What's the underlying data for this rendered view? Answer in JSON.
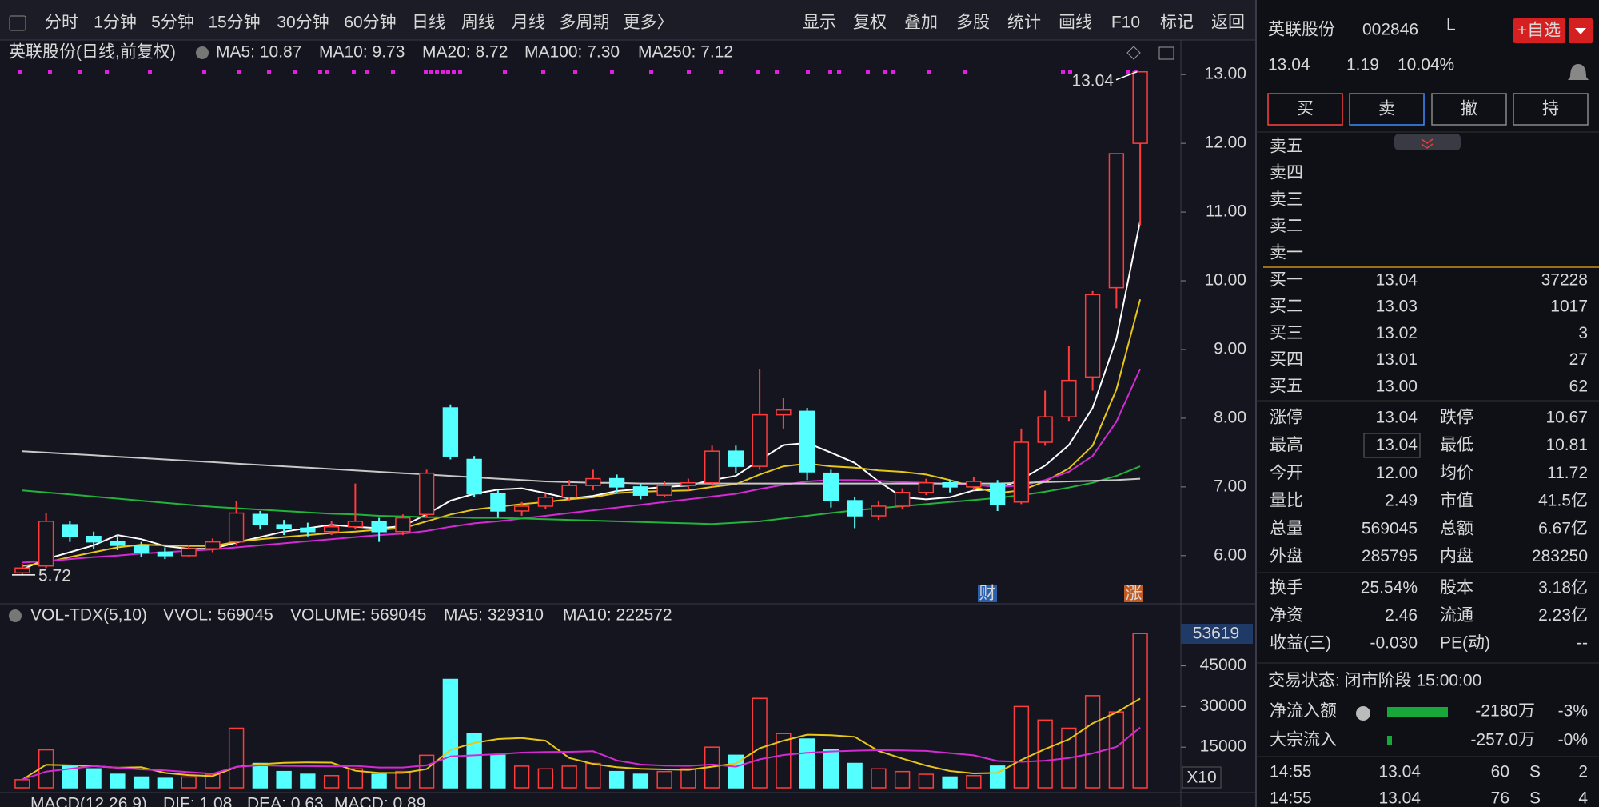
{
  "toolbar": {
    "periods": [
      "分时",
      "1分钟",
      "5分钟",
      "15分钟",
      "30分钟",
      "60分钟",
      "日线",
      "周线",
      "月线",
      "多周期",
      "更多〉"
    ],
    "active_period": 6,
    "tools": [
      "显示",
      "复权",
      "叠加",
      "多股",
      "统计",
      "画线",
      "F10",
      "标记",
      "返回"
    ]
  },
  "chart_data": [
    {
      "type": "candlestick",
      "title": "英联股份(日线,前复权)",
      "ohlc": [
        [
          5.75,
          5.88,
          5.72,
          5.82
        ],
        [
          5.85,
          6.62,
          5.82,
          6.5
        ],
        [
          6.45,
          6.5,
          6.2,
          6.28
        ],
        [
          6.28,
          6.35,
          6.1,
          6.2
        ],
        [
          6.2,
          6.3,
          6.08,
          6.15
        ],
        [
          6.15,
          6.2,
          5.98,
          6.05
        ],
        [
          6.05,
          6.12,
          5.95,
          6.0
        ],
        [
          6.0,
          6.15,
          5.98,
          6.1
        ],
        [
          6.1,
          6.25,
          6.05,
          6.2
        ],
        [
          6.2,
          6.8,
          6.15,
          6.62
        ],
        [
          6.6,
          6.65,
          6.38,
          6.45
        ],
        [
          6.45,
          6.52,
          6.3,
          6.4
        ],
        [
          6.4,
          6.48,
          6.28,
          6.35
        ],
        [
          6.35,
          6.5,
          6.3,
          6.42
        ],
        [
          6.42,
          7.05,
          6.38,
          6.5
        ],
        [
          6.5,
          6.55,
          6.2,
          6.35
        ],
        [
          6.35,
          6.6,
          6.3,
          6.55
        ],
        [
          6.6,
          7.25,
          6.55,
          7.2
        ],
        [
          8.15,
          8.2,
          7.4,
          7.45
        ],
        [
          7.4,
          7.45,
          6.85,
          6.9
        ],
        [
          6.9,
          6.95,
          6.55,
          6.65
        ],
        [
          6.65,
          6.78,
          6.58,
          6.72
        ],
        [
          6.72,
          6.9,
          6.68,
          6.85
        ],
        [
          6.85,
          7.1,
          6.8,
          7.02
        ],
        [
          7.02,
          7.25,
          6.95,
          7.12
        ],
        [
          7.12,
          7.18,
          6.92,
          7.0
        ],
        [
          7.0,
          7.05,
          6.82,
          6.88
        ],
        [
          6.88,
          7.08,
          6.85,
          7.02
        ],
        [
          7.02,
          7.12,
          6.95,
          7.06
        ],
        [
          7.06,
          7.6,
          7.0,
          7.52
        ],
        [
          7.52,
          7.6,
          7.2,
          7.3
        ],
        [
          7.3,
          8.72,
          7.25,
          8.05
        ],
        [
          8.05,
          8.3,
          7.85,
          8.12
        ],
        [
          8.1,
          8.15,
          7.1,
          7.22
        ],
        [
          7.2,
          7.25,
          6.7,
          6.8
        ],
        [
          6.8,
          6.85,
          6.4,
          6.58
        ],
        [
          6.58,
          6.8,
          6.52,
          6.72
        ],
        [
          6.72,
          6.98,
          6.68,
          6.92
        ],
        [
          6.92,
          7.12,
          6.88,
          7.06
        ],
        [
          7.06,
          7.1,
          6.92,
          7.0
        ],
        [
          7.0,
          7.15,
          6.95,
          7.08
        ],
        [
          7.05,
          7.1,
          6.65,
          6.75
        ],
        [
          6.78,
          7.85,
          6.75,
          7.65
        ],
        [
          7.65,
          8.4,
          7.6,
          8.02
        ],
        [
          8.02,
          9.05,
          7.95,
          8.55
        ],
        [
          8.6,
          9.85,
          8.4,
          9.8
        ],
        [
          9.9,
          11.85,
          9.6,
          11.85
        ],
        [
          12.0,
          13.04,
          10.81,
          13.04
        ]
      ],
      "up_color": "#ff3c3c",
      "down_color": "#54ffff",
      "series": [
        {
          "name": "MA5: 10.87",
          "color": "#ffffff",
          "values": [
            5.8,
            5.95,
            6.05,
            6.15,
            6.3,
            6.24,
            6.14,
            6.1,
            6.1,
            6.19,
            6.27,
            6.35,
            6.4,
            6.45,
            6.42,
            6.4,
            6.43,
            6.6,
            6.8,
            6.9,
            6.96,
            6.98,
            6.91,
            6.83,
            6.87,
            6.94,
            6.97,
            7.0,
            7.02,
            7.1,
            7.16,
            7.39,
            7.61,
            7.64,
            7.5,
            7.35,
            7.08,
            6.85,
            6.82,
            6.85,
            6.95,
            6.97,
            7.11,
            7.31,
            7.61,
            8.15,
            9.16,
            10.87
          ]
        },
        {
          "name": "MA10: 9.73",
          "color": "#e6c619",
          "values": [
            5.85,
            5.9,
            5.98,
            6.05,
            6.12,
            6.16,
            6.15,
            6.14,
            6.14,
            6.2,
            6.24,
            6.27,
            6.3,
            6.33,
            6.35,
            6.38,
            6.4,
            6.5,
            6.6,
            6.67,
            6.71,
            6.75,
            6.78,
            6.82,
            6.85,
            6.91,
            6.93,
            6.94,
            6.95,
            7.0,
            7.04,
            7.18,
            7.3,
            7.34,
            7.3,
            7.28,
            7.24,
            7.22,
            7.18,
            7.1,
            7.0,
            6.91,
            6.95,
            7.08,
            7.27,
            7.6,
            8.42,
            9.73
          ]
        },
        {
          "name": "MA20: 8.72",
          "color": "#d42ad4",
          "values": [
            5.9,
            5.92,
            5.95,
            5.98,
            6.0,
            6.03,
            6.05,
            6.07,
            6.09,
            6.12,
            6.15,
            6.18,
            6.21,
            6.24,
            6.27,
            6.3,
            6.32,
            6.36,
            6.42,
            6.47,
            6.5,
            6.54,
            6.58,
            6.62,
            6.66,
            6.7,
            6.74,
            6.78,
            6.82,
            6.86,
            6.9,
            6.97,
            7.03,
            7.08,
            7.1,
            7.1,
            7.09,
            7.07,
            7.06,
            7.04,
            7.03,
            7.0,
            7.02,
            7.1,
            7.22,
            7.45,
            7.95,
            8.72
          ]
        },
        {
          "name": "MA100: 7.30",
          "color": "#22b33a",
          "values": [
            6.95,
            6.92,
            6.89,
            6.86,
            6.83,
            6.8,
            6.77,
            6.74,
            6.71,
            6.69,
            6.67,
            6.65,
            6.63,
            6.61,
            6.6,
            6.58,
            6.57,
            6.56,
            6.56,
            6.55,
            6.55,
            6.54,
            6.53,
            6.52,
            6.51,
            6.5,
            6.49,
            6.48,
            6.47,
            6.46,
            6.48,
            6.5,
            6.54,
            6.58,
            6.62,
            6.66,
            6.69,
            6.72,
            6.75,
            6.78,
            6.81,
            6.84,
            6.88,
            6.93,
            6.99,
            7.06,
            7.16,
            7.3
          ]
        },
        {
          "name": "MA250: 7.12",
          "color": "#c8c8c8",
          "values": [
            7.52,
            7.5,
            7.48,
            7.46,
            7.44,
            7.42,
            7.4,
            7.38,
            7.36,
            7.34,
            7.32,
            7.3,
            7.28,
            7.26,
            7.24,
            7.22,
            7.2,
            7.18,
            7.16,
            7.14,
            7.12,
            7.1,
            7.08,
            7.07,
            7.06,
            7.06,
            7.05,
            7.05,
            7.05,
            7.05,
            7.05,
            7.05,
            7.05,
            7.05,
            7.05,
            7.05,
            7.05,
            7.05,
            7.05,
            7.05,
            7.05,
            7.05,
            7.06,
            7.07,
            7.08,
            7.09,
            7.1,
            7.12
          ]
        }
      ],
      "ylim": [
        5.3,
        13.2
      ],
      "yticks": [
        {
          "value": 6,
          "label": "6.00"
        },
        {
          "value": 7,
          "label": "7.00"
        },
        {
          "value": 8,
          "label": "8.00"
        },
        {
          "value": 9,
          "label": "9.00"
        },
        {
          "value": 10,
          "label": "10.00"
        },
        {
          "value": 11,
          "label": "11.00"
        },
        {
          "value": 12,
          "label": "12.00"
        },
        {
          "value": 13,
          "label": "13.00"
        }
      ],
      "high_mark": 13.04,
      "low_mark": 5.72,
      "markers": [
        "财",
        "涨"
      ]
    },
    {
      "type": "bar",
      "title": "VOL-TDX(5,10)",
      "readouts": [
        "VVOL: 569045",
        "VOLUME: 569045"
      ],
      "values": [
        3000,
        14000,
        8000,
        7000,
        5000,
        4000,
        3500,
        4000,
        5000,
        22000,
        9000,
        6000,
        5000,
        4500,
        7000,
        5000,
        6000,
        12000,
        40000,
        20000,
        12000,
        8000,
        7000,
        8000,
        9000,
        6000,
        5000,
        6000,
        7000,
        15000,
        12000,
        33000,
        20000,
        18000,
        14000,
        9000,
        7000,
        6000,
        5000,
        4000,
        4500,
        8000,
        30000,
        25000,
        22000,
        34000,
        28000,
        56905
      ],
      "series": [
        {
          "name": "MA5: 329310",
          "color": "#e6c619",
          "values": [
            3000,
            8500,
            8300,
            8000,
            7400,
            7600,
            5500,
            4700,
            4300,
            7700,
            8700,
            9200,
            9400,
            9300,
            6300,
            5500,
            5500,
            6900,
            14000,
            16600,
            18000,
            18400,
            17400,
            11000,
            8800,
            7600,
            7000,
            6800,
            6600,
            7800,
            9000,
            14600,
            17400,
            19600,
            19400,
            18800,
            13600,
            10800,
            8200,
            6200,
            5300,
            5500,
            10300,
            14300,
            17900,
            23800,
            27800,
            32931
          ]
        },
        {
          "name": "MA10: 222572",
          "color": "#d42ad4",
          "values": [
            3000,
            6000,
            7000,
            8000,
            7400,
            6800,
            6400,
            5800,
            5200,
            7700,
            8300,
            8100,
            8000,
            7900,
            8100,
            7500,
            7500,
            8300,
            11600,
            12000,
            12400,
            13000,
            13200,
            13300,
            13500,
            10100,
            8600,
            8200,
            8100,
            8600,
            7800,
            10500,
            12100,
            12900,
            13400,
            13700,
            13900,
            13800,
            13600,
            12800,
            12000,
            9900,
            9600,
            10000,
            11000,
            12700,
            15100,
            22257
          ]
        }
      ],
      "ylim": [
        0,
        62000
      ],
      "yticks": [
        15000,
        30000,
        45000
      ],
      "cursor_label": "53619",
      "scale_label": "X10"
    },
    {
      "type": "macd",
      "title": "MACD(12,26,9)",
      "readouts": [
        "DIF: 1.08",
        "DEA: 0.63",
        "MACD: 0.89"
      ]
    }
  ],
  "quote": {
    "name": "英联股份",
    "code": "002846",
    "flag": "L",
    "watch": "+自选",
    "price": "13.04",
    "change": "1.19",
    "pct": "10.04%"
  },
  "trade_buttons": [
    "买",
    "卖",
    "撤",
    "持"
  ],
  "asks": [
    "卖五",
    "卖四",
    "卖三",
    "卖二",
    "卖一"
  ],
  "bids": [
    [
      "买一",
      "13.04",
      "37228"
    ],
    [
      "买二",
      "13.03",
      "1017"
    ],
    [
      "买三",
      "13.02",
      "3"
    ],
    [
      "买四",
      "13.01",
      "27"
    ],
    [
      "买五",
      "13.00",
      "62"
    ]
  ],
  "stats": [
    [
      "涨停",
      "13.04",
      "跌停",
      "10.67"
    ],
    [
      "最高",
      "13.04",
      "最低",
      "10.81"
    ],
    [
      "今开",
      "12.00",
      "均价",
      "11.72"
    ],
    [
      "量比",
      "2.49",
      "市值",
      "41.5亿"
    ],
    [
      "总量",
      "569045",
      "总额",
      "6.67亿"
    ],
    [
      "外盘",
      "285795",
      "内盘",
      "283250"
    ]
  ],
  "stats2": [
    [
      "换手",
      "25.54%",
      "股本",
      "3.18亿"
    ],
    [
      "净资",
      "2.46",
      "流通",
      "2.23亿"
    ],
    [
      "收益(三)",
      "-0.030",
      "PE(动)",
      "--"
    ]
  ],
  "status": "交易状态: 闭市阶段 15:00:00",
  "flows": [
    [
      "净流入额",
      "-2180万",
      "-3%"
    ],
    [
      "大宗流入",
      "-257.0万",
      "-0%"
    ]
  ],
  "ticks": [
    [
      "14:55",
      "13.04",
      "60",
      "S",
      "2"
    ],
    [
      "14:55",
      "13.04",
      "76",
      "S",
      "4"
    ]
  ]
}
